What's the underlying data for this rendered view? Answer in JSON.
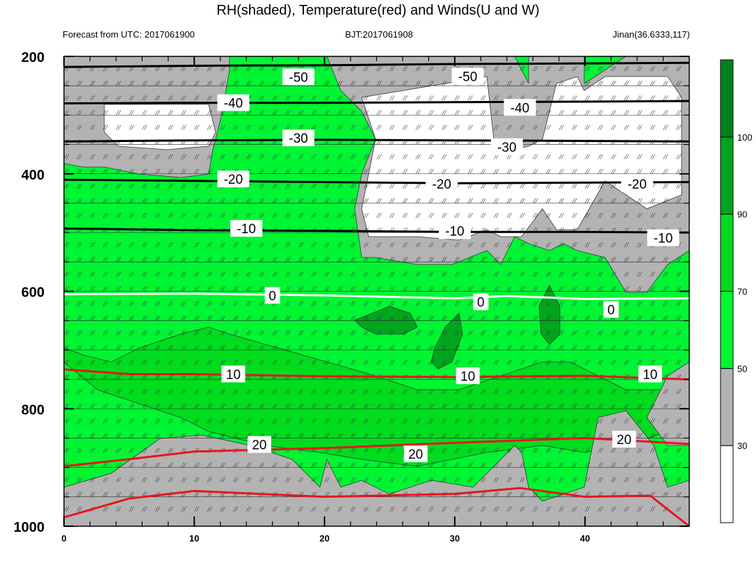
{
  "chart_data": {
    "type": "heatmap",
    "title": "RH(shaded), Temperature(red) and Winds(U and W)",
    "subtitle_left": "Forecast from UTC: 2017061900",
    "subtitle_center": "BJT:2017061908",
    "subtitle_right": "Jinan(36.6333,117)",
    "xlabel": "",
    "ylabel": "",
    "xlim": [
      0,
      48
    ],
    "ylim": [
      1000,
      200
    ],
    "xticks": [
      0,
      10,
      20,
      30,
      40
    ],
    "yticks": [
      200,
      400,
      600,
      800,
      1000
    ],
    "colorbar": {
      "levels": [
        30,
        50,
        70,
        90,
        100
      ],
      "colors": [
        "#ffffff",
        "#b3b3b3",
        "#00f533",
        "#00dc1e",
        "#00a51e",
        "#00821e"
      ]
    },
    "temperature_contours": [
      {
        "value": -50,
        "label": "-50",
        "points": [
          [
            0,
            218
          ],
          [
            10,
            216
          ],
          [
            20,
            215
          ],
          [
            30,
            213
          ],
          [
            40,
            212
          ],
          [
            48,
            211
          ]
        ]
      },
      {
        "value": -40,
        "label": "-40",
        "points": [
          [
            0,
            280
          ],
          [
            10,
            279
          ],
          [
            20,
            279
          ],
          [
            30,
            278
          ],
          [
            40,
            277
          ],
          [
            48,
            276
          ]
        ]
      },
      {
        "value": -30,
        "label": "-30",
        "points": [
          [
            0,
            345
          ],
          [
            10,
            343
          ],
          [
            20,
            342
          ],
          [
            30,
            343
          ],
          [
            40,
            344
          ],
          [
            48,
            345
          ]
        ]
      },
      {
        "value": -20,
        "label": "-20",
        "points": [
          [
            0,
            410
          ],
          [
            10,
            412
          ],
          [
            20,
            414
          ],
          [
            30,
            416
          ],
          [
            40,
            415
          ],
          [
            48,
            414
          ]
        ]
      },
      {
        "value": -10,
        "label": "-10",
        "points": [
          [
            0,
            493
          ],
          [
            10,
            496
          ],
          [
            20,
            497
          ],
          [
            30,
            499
          ],
          [
            40,
            499
          ],
          [
            48,
            500
          ]
        ]
      },
      {
        "value": 0,
        "label": "0",
        "points": [
          [
            0,
            605
          ],
          [
            10,
            604
          ],
          [
            20,
            607
          ],
          [
            30,
            612
          ],
          [
            34,
            608
          ],
          [
            40,
            613
          ],
          [
            48,
            612
          ]
        ]
      },
      {
        "value": 10,
        "label": "10",
        "points": [
          [
            0,
            733
          ],
          [
            5,
            741
          ],
          [
            10,
            741
          ],
          [
            20,
            745
          ],
          [
            30,
            746
          ],
          [
            40,
            744
          ],
          [
            48,
            750
          ]
        ]
      },
      {
        "value": 20,
        "label": "20",
        "points": [
          [
            0,
            898
          ],
          [
            5,
            886
          ],
          [
            10,
            873
          ],
          [
            20,
            867
          ],
          [
            30,
            858
          ],
          [
            40,
            850
          ],
          [
            48,
            860
          ]
        ]
      }
    ],
    "label_positions": [
      {
        "label": "-50",
        "x": 18,
        "y": 236
      },
      {
        "label": "-50",
        "x": 31,
        "y": 235
      },
      {
        "label": "-40",
        "x": 13,
        "y": 280
      },
      {
        "label": "-40",
        "x": 35,
        "y": 288
      },
      {
        "label": "-30",
        "x": 18,
        "y": 340
      },
      {
        "label": "-30",
        "x": 34,
        "y": 355
      },
      {
        "label": "-20",
        "x": 13,
        "y": 410
      },
      {
        "label": "-20",
        "x": 29,
        "y": 418
      },
      {
        "label": "-20",
        "x": 44,
        "y": 418
      },
      {
        "label": "-10",
        "x": 14,
        "y": 494
      },
      {
        "label": "-10",
        "x": 30,
        "y": 498
      },
      {
        "label": "-10",
        "x": 46,
        "y": 510
      },
      {
        "label": "0",
        "x": 16,
        "y": 608
      },
      {
        "label": "0",
        "x": 32,
        "y": 619
      },
      {
        "label": "0",
        "x": 42,
        "y": 632
      },
      {
        "label": "10",
        "x": 13,
        "y": 742
      },
      {
        "label": "10",
        "x": 31,
        "y": 745
      },
      {
        "label": "10",
        "x": 45,
        "y": 742
      },
      {
        "label": "20",
        "x": 15,
        "y": 862
      },
      {
        "label": "20",
        "x": 27,
        "y": 878
      },
      {
        "label": "20",
        "x": 43,
        "y": 853
      }
    ]
  }
}
